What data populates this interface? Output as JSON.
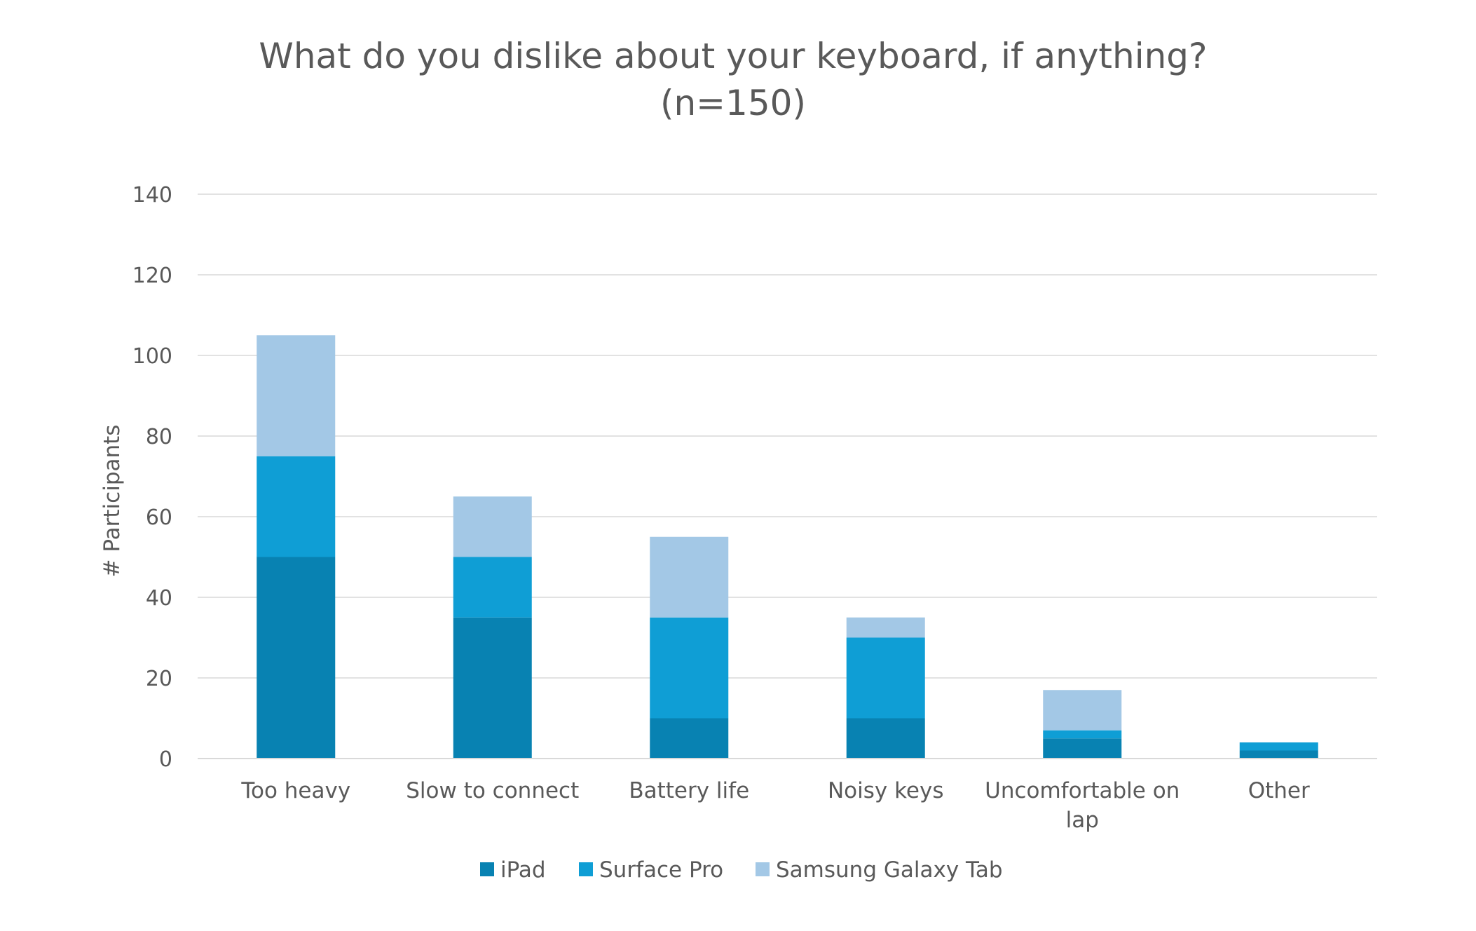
{
  "chart_data": {
    "type": "bar",
    "stacked": true,
    "title_lines": [
      "What do you dislike about your keyboard, if anything?",
      "(n=150)"
    ],
    "xlabel": "",
    "ylabel": "# Participants",
    "ylim": [
      0,
      140
    ],
    "yticks": [
      0,
      20,
      40,
      60,
      80,
      100,
      120,
      140
    ],
    "grid": true,
    "legend_position": "bottom",
    "categories": [
      [
        "Too heavy"
      ],
      [
        "Slow to connect"
      ],
      [
        "Battery life"
      ],
      [
        "Noisy keys"
      ],
      [
        "Uncomfortable on",
        "lap"
      ],
      [
        "Other"
      ]
    ],
    "series": [
      {
        "name": "iPad",
        "color": "#0882b2",
        "values": [
          50,
          35,
          10,
          10,
          5,
          2
        ]
      },
      {
        "name": "Surface Pro",
        "color": "#0f9ed5",
        "values": [
          25,
          15,
          25,
          20,
          2,
          2
        ]
      },
      {
        "name": "Samsung Galaxy Tab",
        "color": "#a3c8e6",
        "values": [
          30,
          15,
          20,
          5,
          10,
          0
        ]
      }
    ]
  }
}
